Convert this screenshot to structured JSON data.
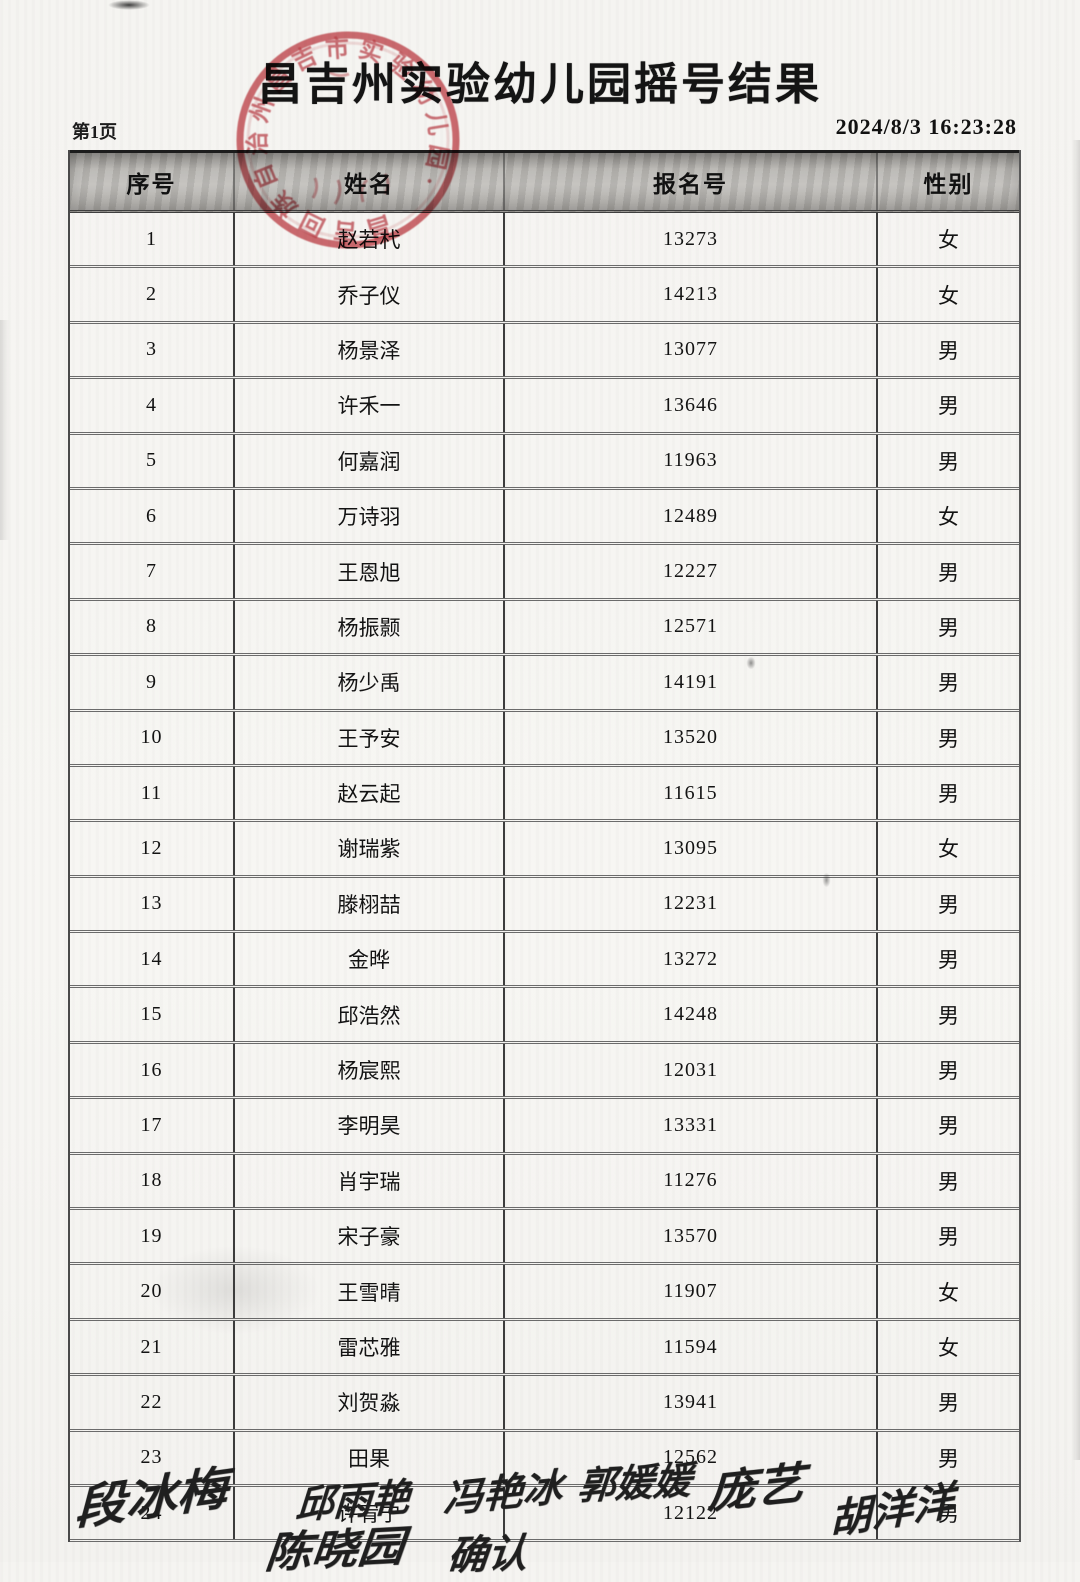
{
  "document": {
    "title": "昌吉州实验幼儿园摇号结果",
    "page_label": "第1页",
    "timestamp": "2024/8/3 16:23:28"
  },
  "stamp": {
    "approx_ring_text": "昌吉回族自治州昌吉市实验幼儿园·",
    "color": "#c9535a"
  },
  "table": {
    "headers": [
      "序号",
      "姓名",
      "报名号",
      "性别"
    ],
    "rows": [
      {
        "no": "1",
        "name": "赵若杙",
        "reg_no": "13273",
        "gender": "女"
      },
      {
        "no": "2",
        "name": "乔子仪",
        "reg_no": "14213",
        "gender": "女"
      },
      {
        "no": "3",
        "name": "杨景泽",
        "reg_no": "13077",
        "gender": "男"
      },
      {
        "no": "4",
        "name": "许禾一",
        "reg_no": "13646",
        "gender": "男"
      },
      {
        "no": "5",
        "name": "何嘉润",
        "reg_no": "11963",
        "gender": "男"
      },
      {
        "no": "6",
        "name": "万诗羽",
        "reg_no": "12489",
        "gender": "女"
      },
      {
        "no": "7",
        "name": "王恩旭",
        "reg_no": "12227",
        "gender": "男"
      },
      {
        "no": "8",
        "name": "杨振颢",
        "reg_no": "12571",
        "gender": "男"
      },
      {
        "no": "9",
        "name": "杨少禹",
        "reg_no": "14191",
        "gender": "男"
      },
      {
        "no": "10",
        "name": "王予安",
        "reg_no": "13520",
        "gender": "男"
      },
      {
        "no": "11",
        "name": "赵云起",
        "reg_no": "11615",
        "gender": "男"
      },
      {
        "no": "12",
        "name": "谢瑞紫",
        "reg_no": "13095",
        "gender": "女"
      },
      {
        "no": "13",
        "name": "滕栩喆",
        "reg_no": "12231",
        "gender": "男"
      },
      {
        "no": "14",
        "name": "金晔",
        "reg_no": "13272",
        "gender": "男"
      },
      {
        "no": "15",
        "name": "邱浩然",
        "reg_no": "14248",
        "gender": "男"
      },
      {
        "no": "16",
        "name": "杨宸熙",
        "reg_no": "12031",
        "gender": "男"
      },
      {
        "no": "17",
        "name": "李明昊",
        "reg_no": "13331",
        "gender": "男"
      },
      {
        "no": "18",
        "name": "肖宇瑞",
        "reg_no": "11276",
        "gender": "男"
      },
      {
        "no": "19",
        "name": "宋子豪",
        "reg_no": "13570",
        "gender": "男"
      },
      {
        "no": "20",
        "name": "王雪晴",
        "reg_no": "11907",
        "gender": "女"
      },
      {
        "no": "21",
        "name": "雷芯雅",
        "reg_no": "11594",
        "gender": "女"
      },
      {
        "no": "22",
        "name": "刘贺淼",
        "reg_no": "13941",
        "gender": "男"
      },
      {
        "no": "23",
        "name": "田果",
        "reg_no": "12562",
        "gender": "男"
      },
      {
        "no": "24",
        "name": "许宥宁",
        "reg_no": "12122",
        "gender": "男"
      }
    ]
  },
  "signatures": {
    "row1": [
      "段冰梅",
      "邱雨艳",
      "冯艳冰",
      "郭媛媛",
      "庞艺",
      "胡洋洋"
    ],
    "row2": [
      "陈晓园",
      "确认"
    ]
  }
}
